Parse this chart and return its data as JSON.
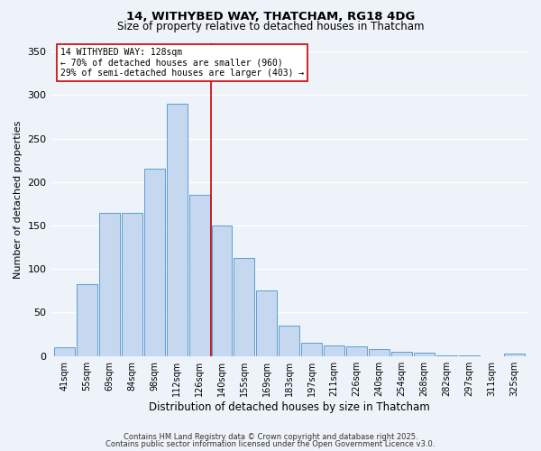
{
  "title_line1": "14, WITHYBED WAY, THATCHAM, RG18 4DG",
  "title_line2": "Size of property relative to detached houses in Thatcham",
  "xlabel": "Distribution of detached houses by size in Thatcham",
  "ylabel": "Number of detached properties",
  "categories": [
    "41sqm",
    "55sqm",
    "69sqm",
    "84sqm",
    "98sqm",
    "112sqm",
    "126sqm",
    "140sqm",
    "155sqm",
    "169sqm",
    "183sqm",
    "197sqm",
    "211sqm",
    "226sqm",
    "240sqm",
    "254sqm",
    "268sqm",
    "282sqm",
    "297sqm",
    "311sqm",
    "325sqm"
  ],
  "values": [
    10,
    83,
    165,
    165,
    215,
    290,
    185,
    150,
    113,
    75,
    35,
    15,
    12,
    11,
    8,
    5,
    4,
    1,
    1,
    0,
    3
  ],
  "bar_color": "#c5d8ef",
  "bar_edge_color": "#5a9fd4",
  "vline_color": "#cc0000",
  "annotation_text": "14 WITHYBED WAY: 128sqm\n← 70% of detached houses are smaller (960)\n29% of semi-detached houses are larger (403) →",
  "annotation_box_color": "#ffffff",
  "annotation_box_edge": "#cc0000",
  "footer_line1": "Contains HM Land Registry data © Crown copyright and database right 2025.",
  "footer_line2": "Contains public sector information licensed under the Open Government Licence v3.0.",
  "ylim": [
    0,
    360
  ],
  "yticks": [
    0,
    50,
    100,
    150,
    200,
    250,
    300,
    350
  ],
  "background_color": "#eef2f9",
  "grid_color": "#ffffff"
}
